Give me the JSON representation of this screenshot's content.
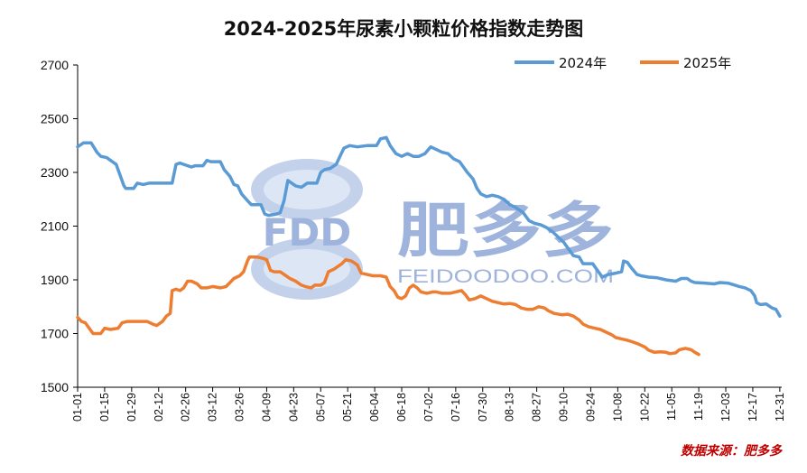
{
  "chart_data": {
    "type": "line",
    "title": "2024-2025年尿素小颗粒价格指数走势图",
    "ylim": [
      1500,
      2700
    ],
    "yticks": [
      1500,
      1700,
      1900,
      2100,
      2300,
      2500,
      2700
    ],
    "x_range_days": [
      0,
      365
    ],
    "categories": [
      "01-01",
      "01-15",
      "01-29",
      "02-12",
      "02-26",
      "03-12",
      "03-26",
      "04-09",
      "04-23",
      "05-07",
      "05-21",
      "06-04",
      "06-18",
      "07-02",
      "07-16",
      "07-30",
      "08-13",
      "08-27",
      "09-10",
      "09-24",
      "10-08",
      "10-22",
      "11-05",
      "11-19",
      "12-03",
      "12-17",
      "12-31"
    ],
    "legend_position": "top-right",
    "source": "数据来源：肥多多",
    "watermark": {
      "logo": "FDD",
      "brand": "肥多多",
      "url": "FEIDOODOO.COM"
    },
    "series": [
      {
        "name": "2024年",
        "color": "#5b9bd5",
        "points": [
          [
            0,
            2395
          ],
          [
            3,
            2410
          ],
          [
            7,
            2410
          ],
          [
            10,
            2375
          ],
          [
            12,
            2360
          ],
          [
            15,
            2355
          ],
          [
            17,
            2345
          ],
          [
            20,
            2330
          ],
          [
            22,
            2290
          ],
          [
            24,
            2250
          ],
          [
            25,
            2240
          ],
          [
            29,
            2240
          ],
          [
            31,
            2260
          ],
          [
            34,
            2255
          ],
          [
            37,
            2260
          ],
          [
            49,
            2260
          ],
          [
            51,
            2330
          ],
          [
            53,
            2335
          ],
          [
            57,
            2325
          ],
          [
            59,
            2320
          ],
          [
            61,
            2325
          ],
          [
            65,
            2325
          ],
          [
            67,
            2345
          ],
          [
            69,
            2340
          ],
          [
            74,
            2340
          ],
          [
            76,
            2310
          ],
          [
            79,
            2285
          ],
          [
            81,
            2255
          ],
          [
            83,
            2250
          ],
          [
            85,
            2220
          ],
          [
            88,
            2195
          ],
          [
            90,
            2180
          ],
          [
            95,
            2180
          ],
          [
            97,
            2145
          ],
          [
            99,
            2140
          ],
          [
            103,
            2145
          ],
          [
            105,
            2150
          ],
          [
            107,
            2195
          ],
          [
            109,
            2270
          ],
          [
            111,
            2260
          ],
          [
            113,
            2250
          ],
          [
            116,
            2245
          ],
          [
            119,
            2260
          ],
          [
            124,
            2260
          ],
          [
            126,
            2300
          ],
          [
            128,
            2310
          ],
          [
            131,
            2315
          ],
          [
            134,
            2330
          ],
          [
            136,
            2360
          ],
          [
            138,
            2390
          ],
          [
            141,
            2400
          ],
          [
            145,
            2395
          ],
          [
            150,
            2400
          ],
          [
            155,
            2400
          ],
          [
            157,
            2425
          ],
          [
            160,
            2430
          ],
          [
            162,
            2400
          ],
          [
            165,
            2370
          ],
          [
            168,
            2360
          ],
          [
            171,
            2370
          ],
          [
            174,
            2360
          ],
          [
            177,
            2360
          ],
          [
            180,
            2370
          ],
          [
            183,
            2395
          ],
          [
            186,
            2385
          ],
          [
            189,
            2375
          ],
          [
            192,
            2370
          ],
          [
            195,
            2350
          ],
          [
            198,
            2340
          ],
          [
            200,
            2320
          ],
          [
            202,
            2300
          ],
          [
            205,
            2275
          ],
          [
            207,
            2240
          ],
          [
            209,
            2220
          ],
          [
            212,
            2210
          ],
          [
            215,
            2215
          ],
          [
            218,
            2210
          ],
          [
            221,
            2200
          ],
          [
            224,
            2180
          ],
          [
            227,
            2170
          ],
          [
            231,
            2150
          ],
          [
            234,
            2120
          ],
          [
            237,
            2110
          ],
          [
            240,
            2105
          ],
          [
            243,
            2095
          ],
          [
            246,
            2080
          ],
          [
            249,
            2060
          ],
          [
            252,
            2040
          ],
          [
            255,
            2010
          ],
          [
            257,
            1990
          ],
          [
            260,
            1985
          ],
          [
            262,
            1960
          ],
          [
            267,
            1960
          ],
          [
            270,
            1930
          ],
          [
            272,
            1910
          ],
          [
            275,
            1920
          ],
          [
            279,
            1925
          ],
          [
            282,
            1930
          ],
          [
            283,
            1970
          ],
          [
            285,
            1965
          ],
          [
            287,
            1945
          ],
          [
            290,
            1920
          ],
          [
            292,
            1915
          ],
          [
            296,
            1910
          ],
          [
            300,
            1908
          ],
          [
            305,
            1900
          ],
          [
            310,
            1895
          ],
          [
            313,
            1905
          ],
          [
            316,
            1905
          ],
          [
            318,
            1895
          ],
          [
            320,
            1890
          ],
          [
            325,
            1888
          ],
          [
            330,
            1885
          ],
          [
            333,
            1890
          ],
          [
            337,
            1888
          ],
          [
            340,
            1882
          ],
          [
            343,
            1875
          ],
          [
            346,
            1870
          ],
          [
            349,
            1860
          ],
          [
            351,
            1840
          ],
          [
            352,
            1815
          ],
          [
            354,
            1808
          ],
          [
            357,
            1810
          ],
          [
            360,
            1795
          ],
          [
            362,
            1790
          ],
          [
            364,
            1765
          ]
        ]
      },
      {
        "name": "2025年",
        "color": "#ed7d31",
        "points": [
          [
            0,
            1760
          ],
          [
            2,
            1745
          ],
          [
            4,
            1740
          ],
          [
            6,
            1720
          ],
          [
            8,
            1700
          ],
          [
            12,
            1700
          ],
          [
            14,
            1720
          ],
          [
            17,
            1715
          ],
          [
            21,
            1720
          ],
          [
            23,
            1740
          ],
          [
            26,
            1745
          ],
          [
            36,
            1745
          ],
          [
            39,
            1735
          ],
          [
            41,
            1730
          ],
          [
            44,
            1745
          ],
          [
            46,
            1765
          ],
          [
            48,
            1775
          ],
          [
            49,
            1860
          ],
          [
            51,
            1865
          ],
          [
            53,
            1860
          ],
          [
            55,
            1870
          ],
          [
            57,
            1895
          ],
          [
            59,
            1895
          ],
          [
            62,
            1885
          ],
          [
            64,
            1870
          ],
          [
            67,
            1870
          ],
          [
            70,
            1875
          ],
          [
            74,
            1870
          ],
          [
            77,
            1875
          ],
          [
            79,
            1890
          ],
          [
            81,
            1905
          ],
          [
            84,
            1915
          ],
          [
            86,
            1930
          ],
          [
            88,
            1970
          ],
          [
            89,
            1985
          ],
          [
            93,
            1985
          ],
          [
            96,
            1980
          ],
          [
            98,
            1975
          ],
          [
            100,
            1935
          ],
          [
            102,
            1930
          ],
          [
            105,
            1930
          ],
          [
            108,
            1915
          ],
          [
            110,
            1905
          ],
          [
            113,
            1895
          ],
          [
            116,
            1880
          ],
          [
            118,
            1875
          ],
          [
            121,
            1870
          ],
          [
            123,
            1880
          ],
          [
            126,
            1880
          ],
          [
            128,
            1890
          ],
          [
            130,
            1930
          ],
          [
            133,
            1940
          ],
          [
            135,
            1950
          ],
          [
            137,
            1960
          ],
          [
            139,
            1975
          ],
          [
            142,
            1970
          ],
          [
            145,
            1955
          ],
          [
            147,
            1925
          ],
          [
            150,
            1920
          ],
          [
            153,
            1915
          ],
          [
            157,
            1915
          ],
          [
            160,
            1910
          ],
          [
            162,
            1875
          ],
          [
            164,
            1860
          ],
          [
            166,
            1835
          ],
          [
            168,
            1830
          ],
          [
            170,
            1840
          ],
          [
            172,
            1870
          ],
          [
            174,
            1880
          ],
          [
            176,
            1870
          ],
          [
            178,
            1855
          ],
          [
            181,
            1850
          ],
          [
            184,
            1855
          ],
          [
            186,
            1855
          ],
          [
            189,
            1850
          ],
          [
            193,
            1850
          ],
          [
            196,
            1855
          ],
          [
            199,
            1860
          ],
          [
            201,
            1845
          ],
          [
            203,
            1825
          ],
          [
            206,
            1830
          ],
          [
            209,
            1840
          ],
          [
            212,
            1830
          ],
          [
            215,
            1820
          ],
          [
            218,
            1815
          ],
          [
            221,
            1810
          ],
          [
            224,
            1812
          ],
          [
            227,
            1808
          ],
          [
            230,
            1795
          ],
          [
            233,
            1790
          ],
          [
            236,
            1790
          ],
          [
            239,
            1800
          ],
          [
            242,
            1795
          ],
          [
            244,
            1785
          ],
          [
            247,
            1775
          ],
          [
            251,
            1770
          ],
          [
            254,
            1772
          ],
          [
            257,
            1765
          ],
          [
            260,
            1750
          ],
          [
            262,
            1735
          ],
          [
            265,
            1725
          ],
          [
            268,
            1720
          ],
          [
            271,
            1715
          ],
          [
            274,
            1705
          ],
          [
            277,
            1695
          ],
          [
            279,
            1685
          ],
          [
            282,
            1680
          ],
          [
            285,
            1675
          ],
          [
            288,
            1668
          ],
          [
            291,
            1660
          ],
          [
            294,
            1650
          ],
          [
            296,
            1638
          ],
          [
            299,
            1630
          ],
          [
            302,
            1632
          ],
          [
            305,
            1630
          ],
          [
            307,
            1625
          ],
          [
            310,
            1628
          ],
          [
            312,
            1640
          ],
          [
            315,
            1645
          ],
          [
            318,
            1640
          ],
          [
            320,
            1630
          ],
          [
            322,
            1622
          ]
        ]
      }
    ]
  }
}
